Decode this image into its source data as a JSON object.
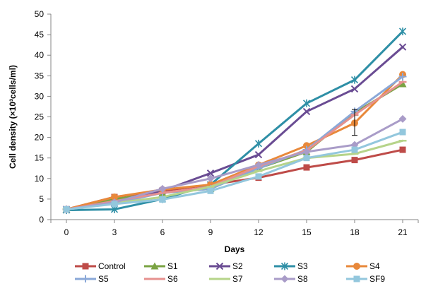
{
  "chart_data": {
    "type": "line",
    "xlabel": "Days",
    "ylabel": "Cell density (×10³cells/ml)",
    "x": [
      0,
      3,
      6,
      9,
      12,
      15,
      18,
      21
    ],
    "xlim": [
      0,
      21
    ],
    "ylim": [
      0,
      50
    ],
    "yticks": [
      0,
      5,
      10,
      15,
      20,
      25,
      30,
      35,
      40,
      45,
      50
    ],
    "grid": false,
    "legend_position": "bottom",
    "series": [
      {
        "name": "Control",
        "color": "#be4b48",
        "marker": "square",
        "values": [
          2.5,
          5.5,
          7.0,
          8.5,
          10.2,
          12.7,
          14.5,
          17.0
        ]
      },
      {
        "name": "S1",
        "color": "#7aa343",
        "marker": "triangle",
        "values": [
          2.5,
          5.0,
          6.5,
          7.5,
          12.5,
          16.5,
          26.0,
          33.0
        ]
      },
      {
        "name": "S2",
        "color": "#6a4c93",
        "marker": "x",
        "values": [
          2.5,
          4.0,
          7.0,
          11.3,
          15.8,
          26.3,
          31.8,
          42.0
        ]
      },
      {
        "name": "S3",
        "color": "#2e8fa6",
        "marker": "star",
        "values": [
          2.3,
          2.5,
          5.0,
          8.5,
          18.5,
          28.3,
          34.0,
          45.8
        ]
      },
      {
        "name": "S4",
        "color": "#e8883a",
        "marker": "circle",
        "values": [
          2.5,
          5.5,
          7.3,
          8.5,
          13.3,
          18.0,
          23.5,
          35.3
        ]
      },
      {
        "name": "S5",
        "color": "#8aa8d8",
        "marker": "plus",
        "values": [
          2.5,
          4.0,
          6.5,
          7.5,
          12.5,
          17.0,
          26.3,
          34.8
        ]
      },
      {
        "name": "S6",
        "color": "#e6918f",
        "marker": "dash",
        "values": [
          2.5,
          4.5,
          6.5,
          8.0,
          13.0,
          16.8,
          25.5,
          33.5
        ]
      },
      {
        "name": "S7",
        "color": "#b6d48a",
        "marker": "dash",
        "values": [
          2.5,
          4.0,
          5.5,
          8.0,
          11.8,
          15.0,
          16.0,
          19.2
        ]
      },
      {
        "name": "S8",
        "color": "#a99cc8",
        "marker": "diamond",
        "values": [
          2.5,
          4.2,
          7.5,
          10.0,
          13.3,
          16.5,
          18.2,
          24.5
        ]
      },
      {
        "name": "SF9",
        "color": "#93c7dd",
        "marker": "square",
        "values": [
          2.5,
          3.8,
          4.9,
          7.0,
          10.5,
          15.0,
          17.0,
          21.3
        ]
      }
    ],
    "error_bars": [
      {
        "series": "S4",
        "x": 18,
        "y": 23.5,
        "low": 20.5,
        "high": 26.8
      }
    ]
  }
}
